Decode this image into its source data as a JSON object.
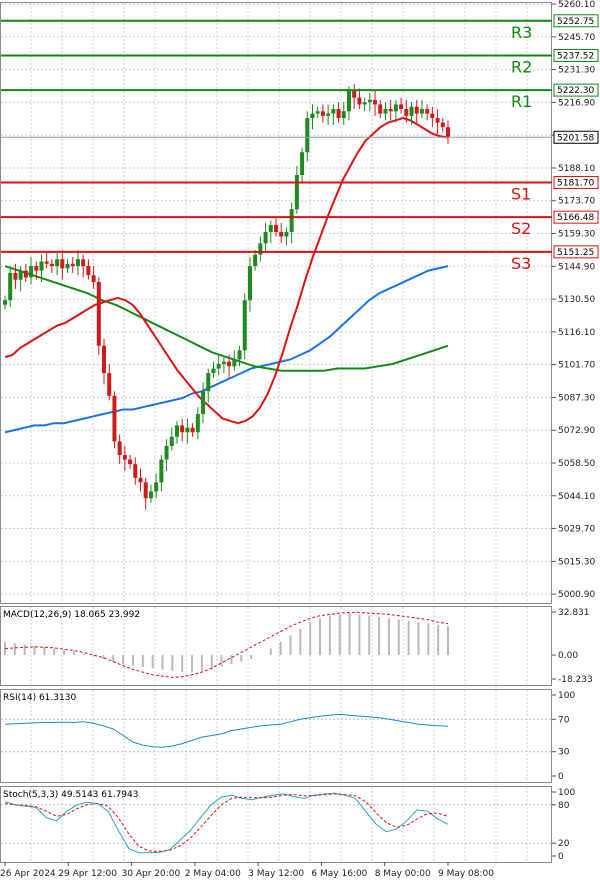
{
  "chart_data": {
    "type": "candlestick",
    "price_axis": {
      "range": [
        4997,
        5261
      ],
      "ticks": [
        "5260.10",
        "5245.70",
        "5231.30",
        "5216.90",
        "5202.50",
        "5188.10",
        "5173.70",
        "5159.30",
        "5144.90",
        "5130.50",
        "5116.10",
        "5101.70",
        "5087.30",
        "5072.90",
        "5058.50",
        "5044.10",
        "5029.70",
        "5015.30",
        "5000.90"
      ]
    },
    "time_axis": {
      "labels": [
        "26 Apr 2024",
        "29 Apr 12:00",
        "30 Apr 20:00",
        "2 May 04:00",
        "3 May 12:00",
        "6 May 16:00",
        "8 May 00:00",
        "9 May 08:00"
      ],
      "label_bars": [
        0,
        16,
        32,
        48,
        64,
        80,
        96,
        112
      ]
    },
    "current_price": "5201.58",
    "levels": [
      {
        "name": "R3",
        "value": 5252.75,
        "label": "5252.75",
        "kind": "resistance"
      },
      {
        "name": "R2",
        "value": 5237.52,
        "label": "5237.52",
        "kind": "resistance"
      },
      {
        "name": "R1",
        "value": 5222.3,
        "label": "5222.30",
        "kind": "resistance"
      },
      {
        "name": "S1",
        "value": 5181.7,
        "label": "5181.70",
        "kind": "support"
      },
      {
        "name": "S2",
        "value": 5166.48,
        "label": "5166.48",
        "kind": "support"
      },
      {
        "name": "S3",
        "value": 5151.25,
        "label": "5151.25",
        "kind": "support"
      }
    ],
    "candles_close": [
      5130,
      5142,
      5139,
      5143,
      5140,
      5145,
      5143,
      5147,
      5146,
      5145,
      5148,
      5144,
      5146,
      5145,
      5148,
      5145,
      5141,
      5138,
      5110,
      5098,
      5088,
      5068,
      5062,
      5060,
      5058,
      5052,
      5050,
      5043,
      5046,
      5050,
      5060,
      5066,
      5070,
      5075,
      5072,
      5074,
      5072,
      5080,
      5090,
      5098,
      5100,
      5102,
      5103,
      5101,
      5104,
      5108,
      5130,
      5145,
      5150,
      5155,
      5160,
      5163,
      5160,
      5158,
      5160,
      5170,
      5185,
      5195,
      5210,
      5212,
      5213,
      5211,
      5212,
      5214,
      5210,
      5213,
      5222,
      5219,
      5216,
      5217,
      5218,
      5216,
      5212,
      5214,
      5213,
      5216,
      5214,
      5211,
      5215,
      5212,
      5214,
      5212,
      5210,
      5208,
      5206,
      5201.58
    ],
    "ma_fast": [
      5105,
      5106,
      5109,
      5111,
      5113,
      5115,
      5117,
      5119,
      5120,
      5122,
      5124,
      5126,
      5128,
      5129,
      5130,
      5131,
      5130,
      5128,
      5124,
      5119,
      5114,
      5109,
      5104,
      5099,
      5095,
      5091,
      5087,
      5084,
      5081,
      5078,
      5077,
      5076,
      5077,
      5079,
      5083,
      5089,
      5097,
      5107,
      5118,
      5128,
      5139,
      5149,
      5158,
      5167,
      5175,
      5183,
      5189,
      5195,
      5200,
      5203,
      5206,
      5208,
      5209,
      5210,
      5209,
      5207,
      5205,
      5203,
      5202,
      5201.5
    ],
    "ma_mid": [
      5072,
      5073,
      5074,
      5075,
      5075,
      5076,
      5076,
      5077,
      5078,
      5079,
      5080,
      5081,
      5082,
      5082,
      5083,
      5084,
      5085,
      5086,
      5087,
      5089,
      5090,
      5092,
      5094,
      5096,
      5098,
      5100,
      5101,
      5102,
      5103,
      5104,
      5106,
      5108,
      5111,
      5114,
      5118,
      5122,
      5126,
      5130,
      5133,
      5135,
      5137,
      5139,
      5141,
      5143,
      5144,
      5145
    ],
    "ma_slow": [
      5145,
      5143,
      5141,
      5139,
      5137,
      5135,
      5133,
      5130,
      5128,
      5125,
      5122,
      5119,
      5116,
      5113,
      5110,
      5107,
      5105,
      5103,
      5101,
      5100,
      5099,
      5099,
      5099,
      5099,
      5100,
      5100,
      5100,
      5101,
      5102,
      5104,
      5106,
      5108,
      5110
    ]
  },
  "indicators": {
    "macd": {
      "title": "MACD(12,26,9) 18.065 23.992",
      "ticks": [
        "32.831",
        "0.00",
        "-18.233"
      ],
      "hist": [
        10,
        9,
        8,
        7,
        6,
        5,
        4,
        3,
        1,
        -1,
        -3,
        -5,
        -7,
        -8,
        -9,
        -10,
        -11,
        -12,
        -13,
        -13,
        -12,
        -11,
        -9,
        -7,
        -5,
        -3,
        0,
        5,
        10,
        15,
        20,
        25,
        28,
        30,
        31,
        32,
        31,
        30,
        29,
        28,
        27,
        26,
        25,
        24,
        23,
        22
      ],
      "signal": [
        5,
        5.5,
        6,
        6.2,
        6,
        5.5,
        4.5,
        3.5,
        2,
        0,
        -2,
        -5,
        -8,
        -11,
        -13,
        -15,
        -16,
        -17,
        -16.5,
        -15,
        -13,
        -10,
        -6,
        -2,
        2,
        6,
        10,
        14,
        18,
        22,
        25,
        28,
        30,
        31,
        32,
        32.5,
        32.5,
        32,
        31.5,
        31,
        30,
        29,
        28,
        27,
        25,
        24
      ]
    },
    "rsi": {
      "title": "RSI(14) 61.3130",
      "ticks": [
        "100",
        "70",
        "30",
        "0"
      ],
      "values": [
        64,
        64.5,
        65,
        65.5,
        66,
        66,
        66.5,
        66,
        67,
        65,
        62,
        58,
        50,
        42,
        38,
        36,
        35.5,
        37,
        40,
        44,
        48,
        50,
        52,
        56,
        58,
        60,
        62,
        63,
        64,
        67,
        70,
        72,
        74,
        75,
        76,
        75,
        74,
        73,
        72,
        70,
        68,
        66,
        64,
        63,
        62,
        61.3
      ]
    },
    "stoch": {
      "title": "Stoch(5,3,3) 49.5143 61.7943",
      "ticks": [
        "100",
        "80",
        "20",
        "0"
      ],
      "k": [
        85,
        80,
        78,
        76,
        60,
        55,
        70,
        80,
        84,
        82,
        70,
        40,
        12,
        5,
        5,
        6,
        10,
        25,
        40,
        60,
        80,
        92,
        95,
        90,
        88,
        92,
        95,
        97,
        93,
        90,
        95,
        97,
        98,
        95,
        90,
        70,
        50,
        38,
        42,
        55,
        72,
        70,
        58,
        49.5
      ],
      "d": [
        82,
        80,
        79,
        77,
        70,
        62,
        65,
        74,
        80,
        82,
        78,
        60,
        35,
        15,
        8,
        7,
        9,
        16,
        28,
        45,
        63,
        80,
        90,
        92,
        91,
        91,
        92,
        95,
        96,
        94,
        94,
        96,
        97,
        96,
        94,
        85,
        68,
        52,
        45,
        48,
        58,
        66,
        67,
        61.8
      ]
    }
  },
  "colors": {
    "up": "#1f8a1f",
    "down": "#d01919",
    "resistance": "#118811",
    "support": "#dd1111",
    "ma_fast": "#e21010",
    "ma_mid": "#1a73e8",
    "ma_slow": "#138a13",
    "grid": "#c9d1dc",
    "price_tag": "#000000",
    "macd_signal": "#e21010",
    "macd_hist": "#b9b9b9",
    "rsi_line": "#1e88c8",
    "stoch_k": "#2aa5c8",
    "stoch_d": "#e21010"
  }
}
